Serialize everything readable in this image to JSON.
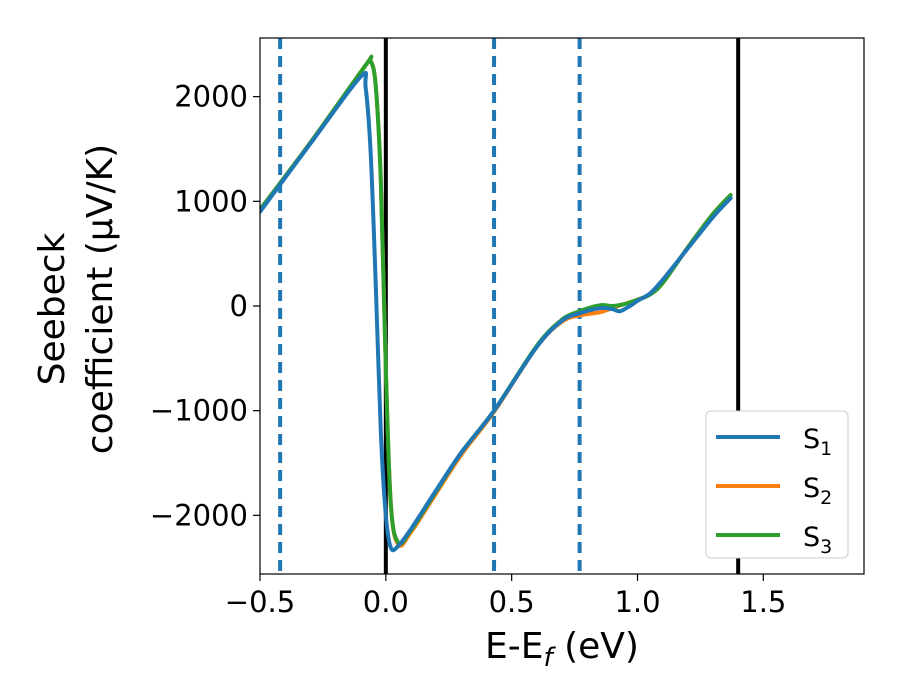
{
  "chart_data": {
    "type": "line",
    "xlabel_main": "E-E",
    "xlabel_sub": "f",
    "xlabel_unit": " (eV)",
    "ylabel_line1": "Seebeck",
    "ylabel_line2": "coefficient  (μV/K)",
    "xlim": [
      -0.5,
      1.9
    ],
    "ylim": [
      -2560,
      2560
    ],
    "xticks": [
      -0.5,
      0.0,
      0.5,
      1.0,
      1.5
    ],
    "xtick_labels": [
      "−0.5",
      "0.0",
      "0.5",
      "1.0",
      "1.5"
    ],
    "yticks": [
      2000,
      1000,
      0,
      -1000,
      -2000
    ],
    "ytick_labels": [
      "2000",
      "1000",
      "0",
      "−1000",
      "−2000"
    ],
    "grid": false,
    "legend_position": "bottom-right",
    "vlines_solid": [
      0.0,
      1.4
    ],
    "vlines_dashed": [
      -0.42,
      0.43,
      0.77
    ],
    "dashed_color": "#1f77b4",
    "series": [
      {
        "name_main": "S",
        "name_sub": "1",
        "color": "#1f77b4",
        "x": [
          -0.5,
          -0.3,
          -0.1,
          -0.08,
          -0.06,
          -0.04,
          -0.02,
          0.0,
          0.02,
          0.05,
          0.1,
          0.2,
          0.3,
          0.43,
          0.6,
          0.7,
          0.77,
          0.85,
          0.9,
          0.93,
          0.97,
          1.0,
          1.05,
          1.1,
          1.2,
          1.3,
          1.37
        ],
        "y": [
          900,
          1550,
          2190,
          2080,
          1450,
          200,
          -1200,
          -2000,
          -2310,
          -2290,
          -2130,
          -1760,
          -1400,
          -1000,
          -390,
          -140,
          -70,
          -20,
          -30,
          -50,
          0,
          50,
          120,
          250,
          550,
          850,
          1030
        ]
      },
      {
        "name_main": "S",
        "name_sub": "2",
        "color": "#ff7f0e",
        "x": [
          -0.5,
          -0.3,
          -0.08,
          -0.06,
          -0.04,
          -0.02,
          0.0,
          0.02,
          0.05,
          0.1,
          0.2,
          0.3,
          0.43,
          0.6,
          0.7,
          0.77,
          0.85,
          0.9,
          0.95,
          1.0,
          1.05,
          1.1,
          1.2,
          1.3,
          1.37
        ],
        "y": [
          920,
          1560,
          2300,
          2340,
          2100,
          1200,
          -600,
          -1900,
          -2280,
          -2160,
          -1790,
          -1420,
          -1010,
          -390,
          -150,
          -90,
          -60,
          -20,
          20,
          60,
          110,
          220,
          560,
          880,
          1060
        ]
      },
      {
        "name_main": "S",
        "name_sub": "3",
        "color": "#2ca02c",
        "x": [
          -0.5,
          -0.3,
          -0.08,
          -0.06,
          -0.04,
          -0.02,
          0.0,
          0.02,
          0.05,
          0.1,
          0.2,
          0.3,
          0.43,
          0.6,
          0.7,
          0.77,
          0.82,
          0.86,
          0.9,
          0.95,
          1.0,
          1.05,
          1.1,
          1.2,
          1.3,
          1.37
        ],
        "y": [
          920,
          1560,
          2300,
          2340,
          2100,
          1200,
          -600,
          -1900,
          -2260,
          -2140,
          -1770,
          -1400,
          -1000,
          -380,
          -130,
          -50,
          -10,
          10,
          0,
          20,
          60,
          110,
          220,
          560,
          880,
          1060
        ]
      }
    ]
  }
}
